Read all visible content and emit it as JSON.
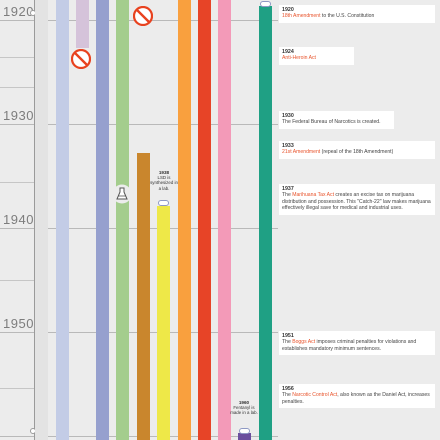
{
  "timeline": {
    "decade_labels": [
      "1920",
      "1930",
      "1940",
      "1950"
    ],
    "lanes": [
      {
        "color": "#e3e3e3"
      },
      {
        "color": "#c3cce6"
      },
      {
        "color": "#d5c3da"
      },
      {
        "color": "#96a0ce"
      },
      {
        "color": "#a4cd8d"
      },
      {
        "color": "#c9862d"
      },
      {
        "color": "#eee848"
      },
      {
        "color": "#f9a03e"
      },
      {
        "color": "#e74427"
      },
      {
        "color": "#f39ab8"
      },
      {
        "color": "#1fa084"
      }
    ],
    "annotations": [
      {
        "year": "1938",
        "text": "LSD is synthesized in a lab."
      },
      {
        "year": "1960",
        "text": "Fentanyl is made in a lab."
      }
    ],
    "icons": {
      "ban": "prohibition-icon",
      "flask": "flask-icon",
      "pill": "pill-icon"
    }
  },
  "events": [
    {
      "year": "1920",
      "parts": [
        {
          "t": "18th Amendment",
          "a": true
        },
        {
          "t": " to the U.S. Constitution",
          "a": false
        }
      ]
    },
    {
      "year": "1924",
      "parts": [
        {
          "t": "Anti-Heroin Act",
          "a": true
        }
      ]
    },
    {
      "year": "1930",
      "parts": [
        {
          "t": "The Federal Bureau of Narcotics is created.",
          "a": false
        }
      ]
    },
    {
      "year": "1933",
      "parts": [
        {
          "t": "21st Amendment",
          "a": true
        },
        {
          "t": " (repeal of the 18th Amendment)",
          "a": false
        }
      ]
    },
    {
      "year": "1937",
      "parts": [
        {
          "t": "The ",
          "a": false
        },
        {
          "t": "Marihuana Tax Act",
          "a": true
        },
        {
          "t": " creates an excise tax on marijuana distribution and possession. This \"Catch-22\" law makes marijuana effectively illegal save for medical and industrial uses.",
          "a": false
        }
      ]
    },
    {
      "year": "1951",
      "parts": [
        {
          "t": "The ",
          "a": false
        },
        {
          "t": "Boggs Act",
          "a": true
        },
        {
          "t": " imposes criminal penalties for violations and establishes mandatory minimum sentences.",
          "a": false
        }
      ]
    },
    {
      "year": "1956",
      "parts": [
        {
          "t": "The ",
          "a": false
        },
        {
          "t": "Narcotic Control Act",
          "a": true
        },
        {
          "t": ", also known as the Daniel Act, increases penalties.",
          "a": false
        }
      ]
    }
  ]
}
